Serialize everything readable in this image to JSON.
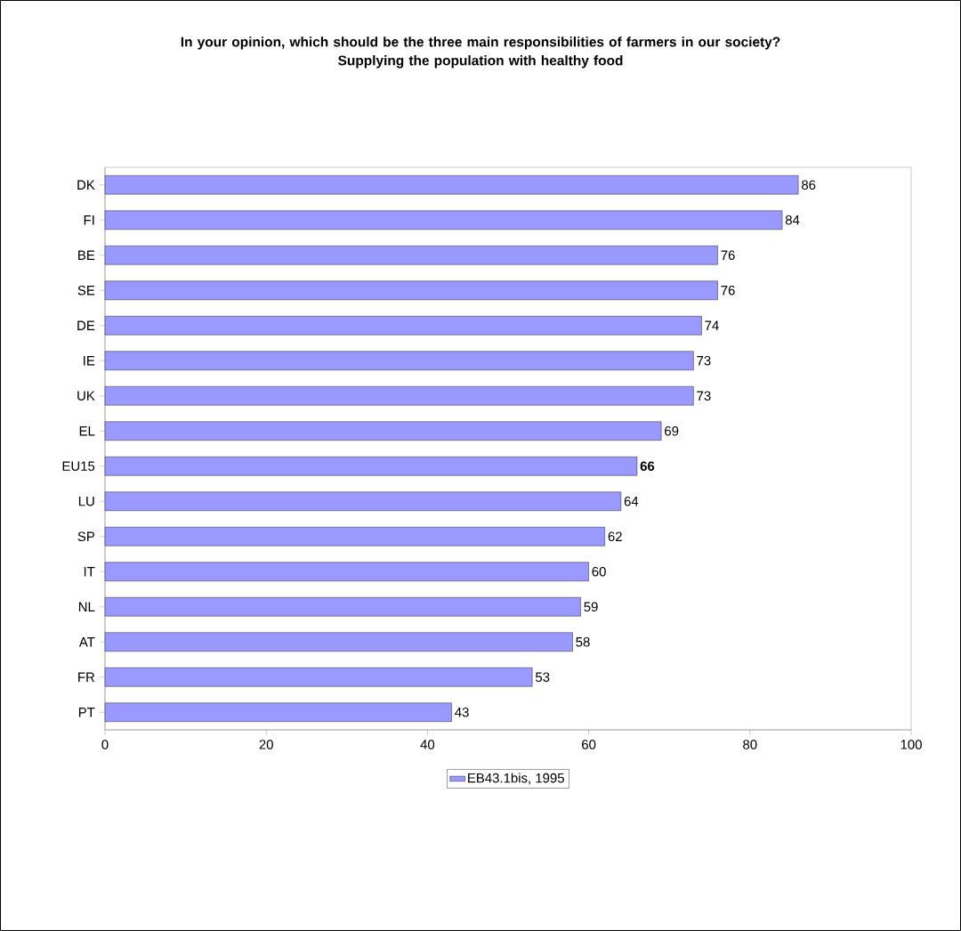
{
  "chart_data": {
    "type": "bar",
    "orientation": "horizontal",
    "title": "In your opinion, which should be the three main responsibilities of farmers in our society?",
    "subtitle": "Supplying the population with healthy food",
    "categories": [
      "DK",
      "FI",
      "BE",
      "SE",
      "DE",
      "IE",
      "UK",
      "EL",
      "EU15",
      "LU",
      "SP",
      "IT",
      "NL",
      "AT",
      "FR",
      "PT"
    ],
    "series": [
      {
        "name": "EB43.1bis, 1995",
        "color": "#9999ff",
        "values": [
          86,
          84,
          76,
          76,
          74,
          73,
          73,
          69,
          66,
          64,
          62,
          60,
          59,
          58,
          53,
          43
        ],
        "value_labels": [
          "86",
          "84",
          "76",
          "76",
          "74",
          "73",
          "73",
          "69",
          "**66**",
          "64",
          "62",
          "60",
          "59",
          "58",
          "53",
          "43"
        ]
      }
    ],
    "xlim": [
      0,
      100
    ],
    "xticks": [
      0,
      20,
      40,
      60,
      80,
      100
    ],
    "legend": "bottom"
  }
}
